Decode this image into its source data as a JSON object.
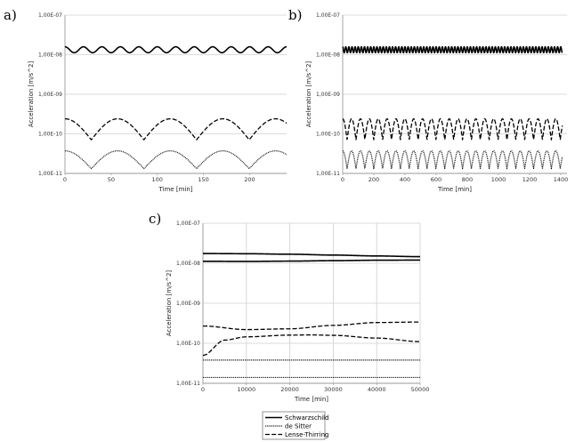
{
  "chart_data": [
    {
      "panel": "a)",
      "type": "line",
      "xlabel": "Time [min]",
      "ylabel": "Acceleration [m/s^2]",
      "xlim": [
        0,
        240
      ],
      "xticks": [
        "0",
        "50",
        "100",
        "150",
        "200"
      ],
      "ylim": [
        1e-11,
        1e-07
      ],
      "yscale": "log",
      "yticks": [
        "1,00E-11",
        "1,00E-10",
        "1,00E-09",
        "1,00E-08",
        "1,00E-07"
      ],
      "grid": "horizontal",
      "series": [
        {
          "name": "Schwarzschild",
          "style": "solid",
          "x_start": 0,
          "x_end": 240,
          "period": 20,
          "log_mid": -7.875,
          "log_amp": 0.075
        },
        {
          "name": "Lense-Thirring",
          "style": "dashed",
          "x_start": 0,
          "x_end": 240,
          "period": 57,
          "log_min": -10.15,
          "log_max": -9.62
        },
        {
          "name": "de Sitter",
          "style": "dotted",
          "x_start": 0,
          "x_end": 240,
          "period": 57,
          "log_min": -10.88,
          "log_max": -10.43
        }
      ]
    },
    {
      "panel": "b)",
      "type": "line",
      "xlabel": "Time [min]",
      "ylabel": "Acceleration [m/s^2]",
      "xlim": [
        0,
        1440
      ],
      "xticks": [
        "0",
        "200",
        "400",
        "600",
        "800",
        "1000",
        "1200",
        "1400"
      ],
      "ylim": [
        1e-11,
        1e-07
      ],
      "yscale": "log",
      "yticks": [
        "1,00E-11",
        "1,00E-10",
        "1,00E-09",
        "1,00E-08",
        "1,00E-07"
      ],
      "grid": "horizontal",
      "series": [
        {
          "name": "Schwarzschild",
          "style": "solid",
          "x_start": 0,
          "x_end": 1410,
          "period": 20,
          "log_mid": -7.875,
          "log_amp": 0.075
        },
        {
          "name": "Lense-Thirring",
          "style": "dashed",
          "x_start": 0,
          "x_end": 1410,
          "period": 57,
          "log_min": -10.15,
          "log_max": -9.62
        },
        {
          "name": "de Sitter",
          "style": "dotted",
          "x_start": 0,
          "x_end": 1410,
          "period": 57,
          "log_min": -10.88,
          "log_max": -10.43
        }
      ]
    },
    {
      "panel": "c)",
      "type": "line",
      "xlabel": "Time [min]",
      "ylabel": "Acceleration [m/s^2]",
      "xlim": [
        0,
        50000
      ],
      "xticks": [
        "0",
        "10000",
        "20000",
        "30000",
        "40000",
        "50000"
      ],
      "ylim": [
        1e-11,
        1e-07
      ],
      "yscale": "log",
      "yticks": [
        "1,00E-11",
        "1,00E-10",
        "1,00E-09",
        "1,00E-08",
        "1,00E-07"
      ],
      "grid": "both",
      "series": [
        {
          "name": "Schwarzschild",
          "style": "solid",
          "x": [
            0,
            10000,
            20000,
            30000,
            40000,
            50000
          ],
          "y": [
            1.75e-08,
            1.73e-08,
            1.68e-08,
            1.6e-08,
            1.52e-08,
            1.46e-08
          ]
        },
        {
          "name": "Schwarzschild",
          "style": "solid",
          "x": [
            0,
            10000,
            20000,
            30000,
            40000,
            50000
          ],
          "y": [
            1.12e-08,
            1.11e-08,
            1.13e-08,
            1.16e-08,
            1.19e-08,
            1.2e-08
          ]
        },
        {
          "name": "Lense-Thirring",
          "style": "dashed",
          "x": [
            0,
            10000,
            20000,
            30000,
            40000,
            50000
          ],
          "y": [
            2.7e-10,
            2.2e-10,
            2.3e-10,
            2.8e-10,
            3.3e-10,
            3.4e-10
          ]
        },
        {
          "name": "Lense-Thirring",
          "style": "dashed",
          "x": [
            0,
            5000,
            10000,
            20000,
            25000,
            30000,
            40000,
            50000
          ],
          "y": [
            5e-11,
            1.2e-10,
            1.45e-10,
            1.6e-10,
            1.62e-10,
            1.58e-10,
            1.35e-10,
            1.1e-10
          ]
        },
        {
          "name": "de Sitter",
          "style": "dotted",
          "x": [
            0,
            50000
          ],
          "y": [
            3.8e-11,
            3.8e-11
          ]
        },
        {
          "name": "de Sitter",
          "style": "dotted",
          "x": [
            0,
            50000
          ],
          "y": [
            1.4e-11,
            1.4e-11
          ]
        }
      ],
      "legend": {
        "placement": "bottom",
        "entries": [
          {
            "label": "Schwarzschild",
            "style": "solid"
          },
          {
            "label": "de Sitter",
            "style": "dotted"
          },
          {
            "label": "Lense-Thirring",
            "style": "dashed"
          }
        ]
      }
    }
  ]
}
